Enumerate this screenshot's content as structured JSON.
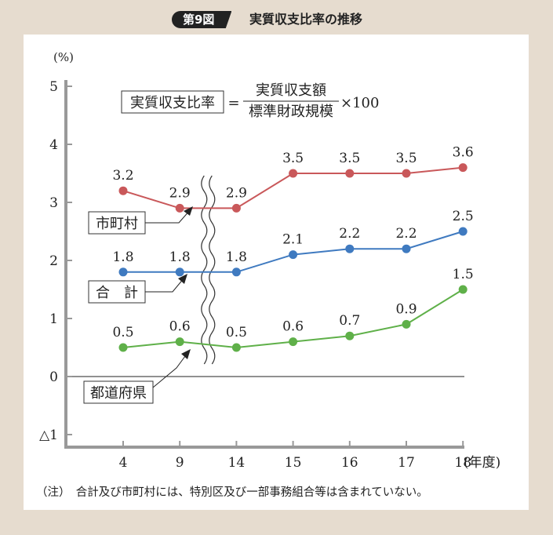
{
  "header": {
    "figure_number": "第9図",
    "title": "実質収支比率の推移"
  },
  "formula": {
    "lhs": "実質収支比率",
    "eq": "=",
    "numerator": "実質収支額",
    "denominator": "標準財政規模",
    "multiplier": "×100"
  },
  "note": "（注）　合計及び市町村には、特別区及び一部事務組合等は含まれていない。",
  "chart_data": {
    "type": "line",
    "categories": [
      "4",
      "9",
      "14",
      "15",
      "16",
      "17",
      "18"
    ],
    "x_unit_label": "(年度)",
    "y_unit_label": "(%)",
    "ylim": [
      -1,
      5
    ],
    "yticks": [
      {
        "value": 5,
        "label": "5"
      },
      {
        "value": 4,
        "label": "4"
      },
      {
        "value": 3,
        "label": "3"
      },
      {
        "value": 2,
        "label": "2"
      },
      {
        "value": 1,
        "label": "1"
      },
      {
        "value": 0,
        "label": "0"
      },
      {
        "value": -1,
        "label": "△1"
      }
    ],
    "axis_break_between": [
      "9",
      "14"
    ],
    "grid": false,
    "series": [
      {
        "name": "市町村",
        "color": "#c9585a",
        "values": [
          3.2,
          2.9,
          2.9,
          3.5,
          3.5,
          3.5,
          3.6
        ],
        "labels": [
          "3.2",
          "2.9",
          "2.9",
          "3.5",
          "3.5",
          "3.5",
          "3.6"
        ]
      },
      {
        "name": "合　計",
        "color": "#3f7ac0",
        "values": [
          1.8,
          1.8,
          1.8,
          2.1,
          2.2,
          2.2,
          2.5
        ],
        "labels": [
          "1.8",
          "1.8",
          "1.8",
          "2.1",
          "2.2",
          "2.2",
          "2.5"
        ]
      },
      {
        "name": "都道府県",
        "color": "#5fb049",
        "values": [
          0.5,
          0.6,
          0.5,
          0.6,
          0.7,
          0.9,
          1.5
        ],
        "labels": [
          "0.5",
          "0.6",
          "0.5",
          "0.6",
          "0.7",
          "0.9",
          "1.5"
        ]
      }
    ]
  }
}
